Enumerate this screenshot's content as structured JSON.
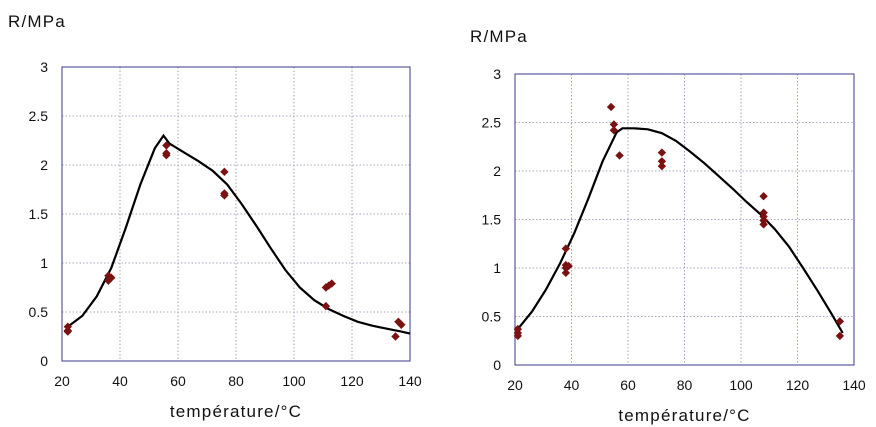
{
  "chart_data": [
    {
      "type": "scatter",
      "ylabel": "R/MPa",
      "xlabel": "température/°C",
      "xlim": [
        20,
        140
      ],
      "ylim": [
        0,
        3
      ],
      "xticks": [
        20,
        40,
        60,
        80,
        100,
        120,
        140
      ],
      "yticks": [
        0,
        0.5,
        1,
        1.5,
        2,
        2.5,
        3
      ],
      "ytick_labels": [
        "0",
        "0.5",
        "1",
        "1.5",
        "2",
        "2.5",
        "3"
      ],
      "grid": true,
      "series": [
        {
          "kind": "points",
          "color": "#7b1212",
          "x": [
            22,
            22,
            22,
            36,
            36,
            37,
            56,
            56,
            56,
            76,
            76,
            76,
            111,
            112,
            113,
            111,
            135,
            136,
            137
          ],
          "y": [
            0.35,
            0.3,
            0.31,
            0.87,
            0.82,
            0.85,
            2.2,
            2.12,
            2.1,
            1.93,
            1.71,
            1.69,
            0.75,
            0.77,
            0.79,
            0.56,
            0.25,
            0.4,
            0.37
          ]
        },
        {
          "kind": "line",
          "color": "#000000",
          "x": [
            22,
            27,
            32,
            37,
            42,
            47,
            52,
            55,
            57,
            62,
            67,
            72,
            77,
            82,
            87,
            92,
            97,
            102,
            107,
            112,
            117,
            122,
            127,
            132,
            137,
            140
          ],
          "y": [
            0.35,
            0.46,
            0.66,
            0.95,
            1.36,
            1.8,
            2.17,
            2.3,
            2.22,
            2.13,
            2.04,
            1.94,
            1.8,
            1.6,
            1.38,
            1.15,
            0.93,
            0.75,
            0.62,
            0.53,
            0.46,
            0.4,
            0.36,
            0.33,
            0.3,
            0.28
          ]
        }
      ]
    },
    {
      "type": "scatter",
      "ylabel": "R/MPa",
      "xlabel": "température/°C",
      "xlim": [
        20,
        140
      ],
      "ylim": [
        0,
        3
      ],
      "xticks": [
        20,
        40,
        60,
        80,
        100,
        120,
        140
      ],
      "yticks": [
        0,
        0.5,
        1,
        1.5,
        2,
        2.5,
        3
      ],
      "ytick_labels": [
        "0",
        "0.5",
        "1",
        "1.5",
        "2",
        "2.5",
        "3"
      ],
      "grid": true,
      "series": [
        {
          "kind": "points",
          "color": "#7b1212",
          "x": [
            21,
            21,
            21,
            38,
            38,
            38,
            39,
            38,
            54,
            55,
            55,
            57,
            72,
            72,
            72,
            108,
            108,
            108,
            108,
            108,
            135,
            135
          ],
          "y": [
            0.37,
            0.33,
            0.3,
            1.2,
            1.03,
            1.0,
            1.02,
            0.95,
            2.66,
            2.48,
            2.42,
            2.16,
            2.19,
            2.1,
            2.05,
            1.74,
            1.57,
            1.53,
            1.49,
            1.45,
            0.45,
            0.3
          ]
        },
        {
          "kind": "line",
          "color": "#000000",
          "x": [
            21,
            26,
            31,
            36,
            41,
            46,
            51,
            56,
            58,
            62,
            67,
            72,
            77,
            82,
            87,
            92,
            97,
            102,
            107,
            112,
            117,
            122,
            127,
            132,
            136
          ],
          "y": [
            0.37,
            0.55,
            0.78,
            1.05,
            1.36,
            1.72,
            2.1,
            2.4,
            2.44,
            2.44,
            2.43,
            2.39,
            2.31,
            2.2,
            2.08,
            1.95,
            1.82,
            1.68,
            1.55,
            1.4,
            1.22,
            1.0,
            0.77,
            0.53,
            0.33
          ]
        }
      ]
    }
  ]
}
